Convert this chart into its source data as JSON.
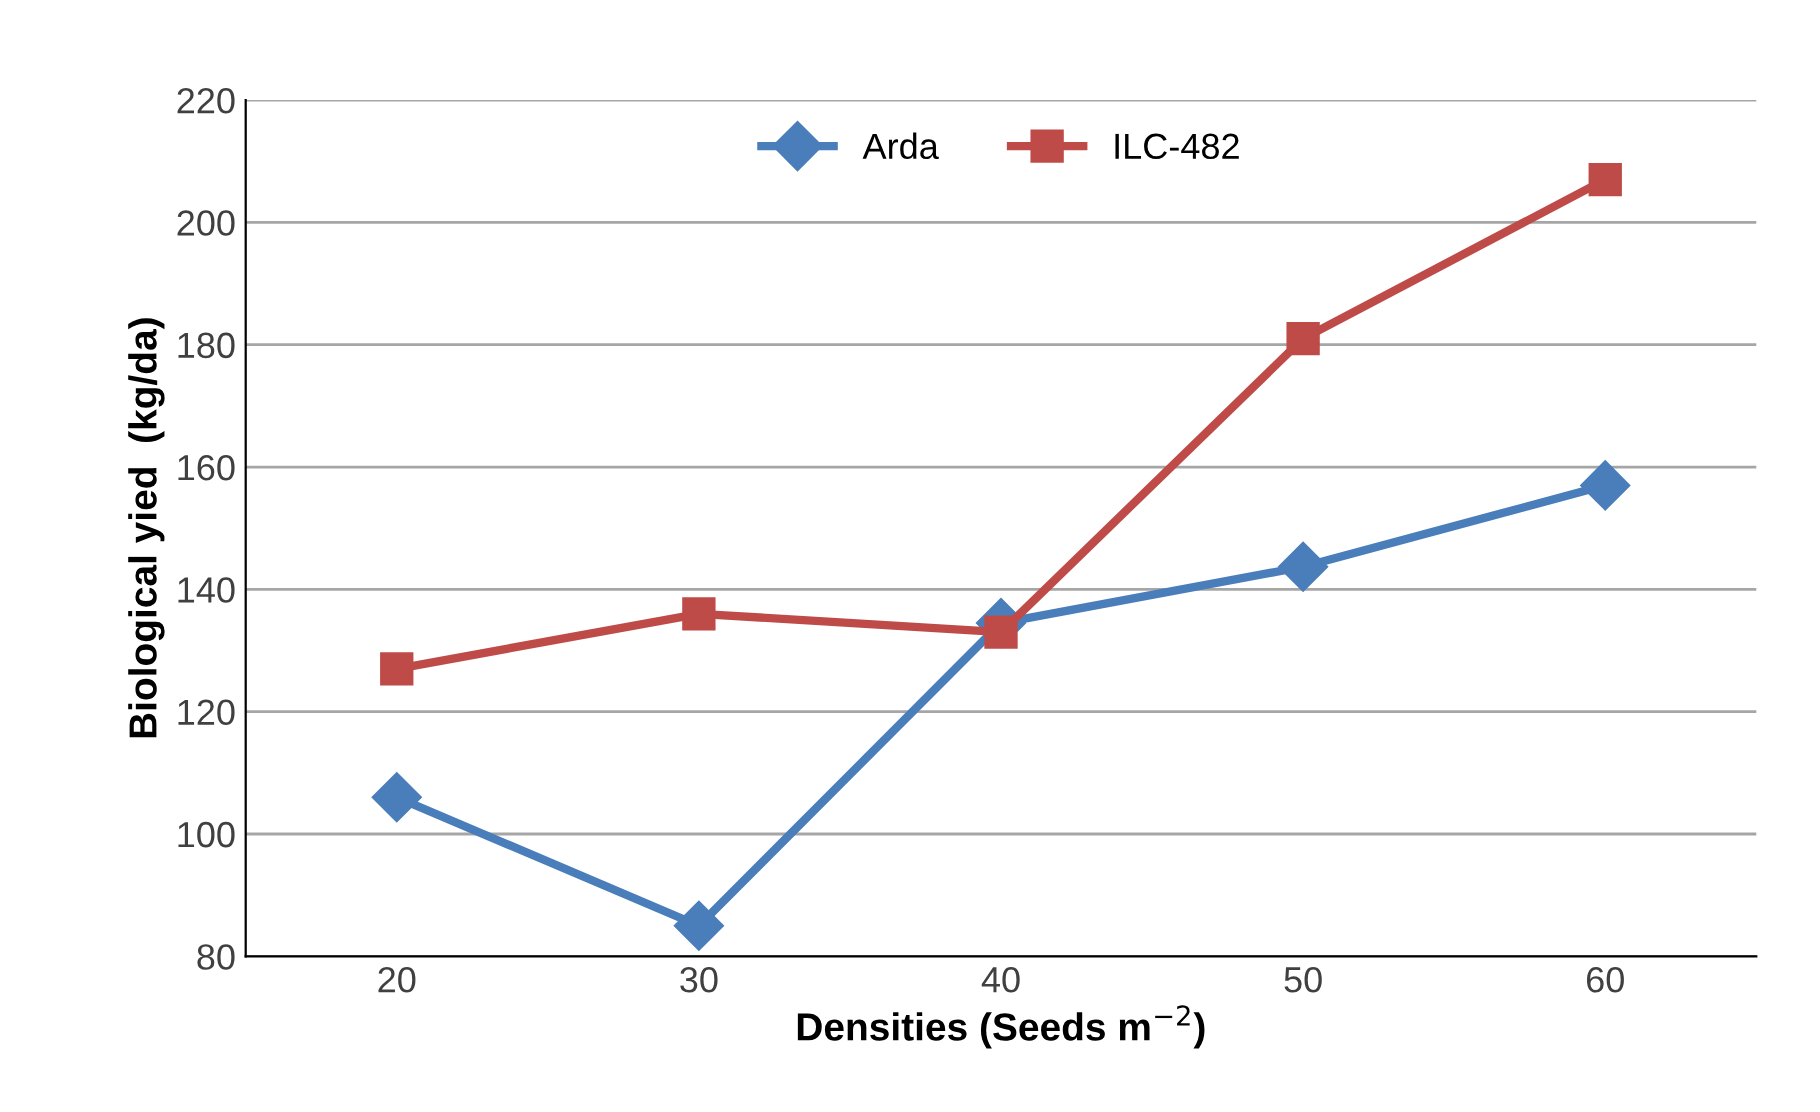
{
  "chart_data": {
    "type": "line",
    "xlabel": "Densities (Seeds m$^{−2}$)",
    "ylabel": "Biological yied  (kg/da)",
    "categories": [
      "20",
      "30",
      "40",
      "50",
      "60"
    ],
    "series": [
      {
        "name": "Arda",
        "color": "#4a7ebb",
        "marker": "diamond",
        "values": [
          106,
          85,
          134.5,
          143.7,
          157
        ]
      },
      {
        "name": "ILC-482",
        "color": "#be4b48",
        "marker": "square",
        "values": [
          127,
          136,
          133,
          181,
          207
        ]
      }
    ],
    "ylim": [
      80,
      220
    ],
    "yticks": [
      80,
      100,
      120,
      140,
      160,
      180,
      200,
      220
    ],
    "grid": "y",
    "legend": "top",
    "line_style": "solid"
  }
}
